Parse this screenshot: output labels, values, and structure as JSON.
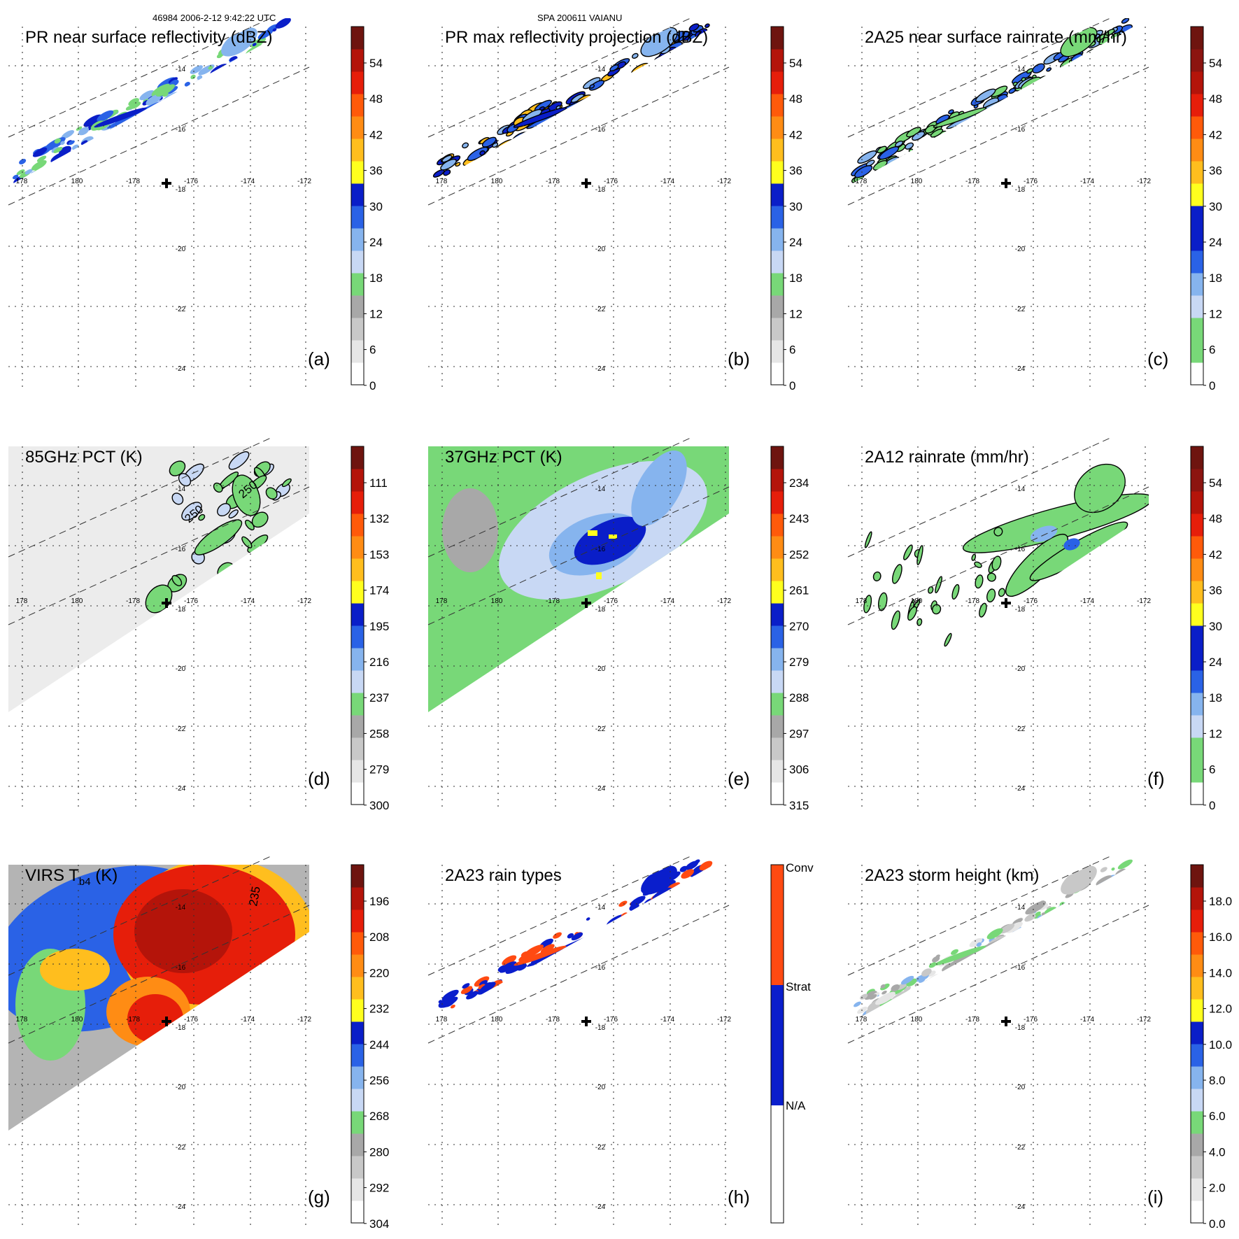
{
  "header": {
    "left": "46984 2006-2-12 9:42:22 UTC",
    "center": "SPA 200611 VAIANU"
  },
  "grid": {
    "lon_labels": [
      "178",
      "180",
      "-178",
      "-176",
      "-174",
      "-172"
    ],
    "lat_labels": [
      "-14",
      "-16",
      "-18",
      "-20",
      "-22",
      "-24"
    ]
  },
  "colors": {
    "refl_scale": [
      "#ffffff",
      "#e6e6e6",
      "#c8c8c8",
      "#a8a8a8",
      "#78d878",
      "#c8d8f4",
      "#86b4ee",
      "#2a62e6",
      "#0a1ec8",
      "#ffff1e",
      "#ffbe1e",
      "#ff8c14",
      "#ff5a0a",
      "#e61e0a",
      "#b4140a",
      "#6e140f"
    ],
    "storm_marker": "#000000",
    "rain_type_conv": "#ff4a12",
    "rain_type_strat": "#0a1ecc"
  },
  "panels": [
    {
      "id": "a",
      "title": "PR near surface reflectivity (dBZ)",
      "letter": "(a)",
      "colorbar": {
        "labels": [
          "54",
          "48",
          "42",
          "36",
          "30",
          "24",
          "18",
          "12",
          "6",
          "0"
        ]
      }
    },
    {
      "id": "b",
      "title": "PR max reflectivity projection (dBZ)",
      "letter": "(b)",
      "colorbar": {
        "labels": [
          "54",
          "48",
          "42",
          "36",
          "30",
          "24",
          "18",
          "12",
          "6",
          "0"
        ]
      }
    },
    {
      "id": "c",
      "title": "2A25 near surface rainrate (mm/hr)",
      "letter": "(c)",
      "colorbar": {
        "labels": [
          "54",
          "48",
          "42",
          "36",
          "30",
          "24",
          "18",
          "12",
          "6",
          "0"
        ]
      }
    },
    {
      "id": "d",
      "title": "85GHz PCT (K)",
      "letter": "(d)",
      "contour_labels": [
        "250",
        "250"
      ],
      "colorbar": {
        "labels": [
          "111",
          "132",
          "153",
          "174",
          "195",
          "216",
          "237",
          "258",
          "279",
          "300"
        ]
      }
    },
    {
      "id": "e",
      "title": "37GHz PCT (K)",
      "letter": "(e)",
      "colorbar": {
        "labels": [
          "234",
          "243",
          "252",
          "261",
          "270",
          "279",
          "288",
          "297",
          "306",
          "315"
        ]
      }
    },
    {
      "id": "f",
      "title": "2A12 rainrate (mm/hr)",
      "letter": "(f)",
      "colorbar": {
        "labels": [
          "54",
          "48",
          "42",
          "36",
          "30",
          "24",
          "18",
          "12",
          "6",
          "0"
        ]
      }
    },
    {
      "id": "g",
      "title": "VIRS T",
      "title_sub": "b4",
      "title_suffix": " (K)",
      "letter": "(g)",
      "contour_labels": [
        "235"
      ],
      "colorbar": {
        "labels": [
          "196",
          "208",
          "220",
          "232",
          "244",
          "256",
          "268",
          "280",
          "292",
          "304"
        ]
      }
    },
    {
      "id": "h",
      "title": "2A23 rain types",
      "letter": "(h)",
      "colorbar": {
        "labels": [
          "Conv",
          "Strat",
          "N/A"
        ]
      }
    },
    {
      "id": "i",
      "title": "2A23 storm height (km)",
      "letter": "(i)",
      "colorbar": {
        "labels": [
          "18.0",
          "16.0",
          "14.0",
          "12.0",
          "10.0",
          "8.0",
          "6.0",
          "4.0",
          "2.0",
          "0.0"
        ]
      }
    }
  ]
}
